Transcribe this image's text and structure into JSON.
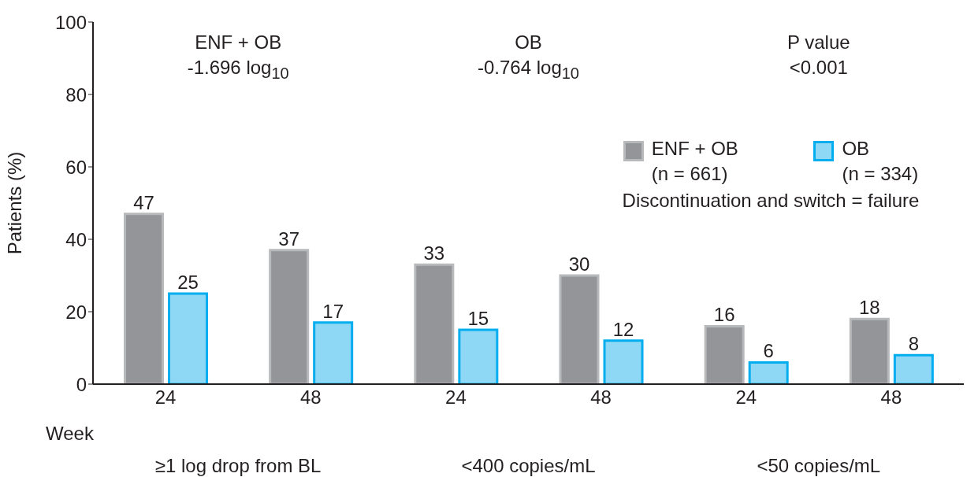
{
  "chart_data": {
    "type": "bar",
    "ylabel": "Patients (%)",
    "xlabel": "Week",
    "categories": [
      "24",
      "48",
      "24",
      "48",
      "24",
      "48"
    ],
    "series": [
      {
        "name": "ENF + OB\n(n = 661)",
        "color": "#939598",
        "values": [
          47,
          37,
          33,
          30,
          16,
          18
        ]
      },
      {
        "name": "OB\n(n = 334)",
        "color": "#8fd8f5",
        "values": [
          25,
          17,
          15,
          12,
          6,
          8
        ]
      }
    ],
    "ylim": [
      0,
      100
    ],
    "yticks": [
      0,
      20,
      40,
      60,
      80,
      100
    ],
    "grid": false,
    "legend": "top right",
    "data_labels": true,
    "annotations": [
      "ENF + OB\n-1.696 log$_{10}$",
      "OB\n-0.764 log$_{10}$",
      "P value\n<0.001",
      "≥1 log drop from BL",
      "<400 copies/mL",
      "<50 copies/mL",
      "Discontinuation and switch = failure"
    ]
  }
}
